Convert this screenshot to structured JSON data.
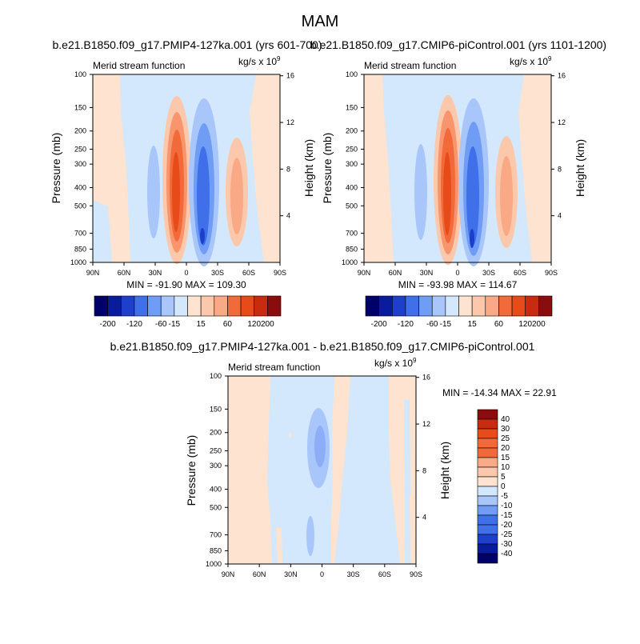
{
  "title": "MAM",
  "chart_data": [
    {
      "type": "heatmap",
      "subtitle": "b.e21.B1850.f09_g17.PMIP4-127ka.001 (yrs 601-700)",
      "left_label": "Merid stream function",
      "units_base": "kg/s x 10",
      "units_exp": "9",
      "ylabel": "Pressure (mb)",
      "ylabel_right": "Height (km)",
      "xticks": [
        "90N",
        "60N",
        "30N",
        "0",
        "30S",
        "60S",
        "90S"
      ],
      "pressure_ticks": [
        "100",
        "150",
        "200",
        "250",
        "300",
        "400",
        "500",
        "700",
        "850",
        "1000"
      ],
      "height_ticks": [
        "16",
        "12",
        "8",
        "4"
      ],
      "stats": "MIN = -91.90  MAX = 109.30",
      "levels": [
        -200,
        -160,
        -120,
        -80,
        -60,
        -40,
        -15,
        0,
        15,
        40,
        60,
        80,
        120,
        160,
        200
      ],
      "colorbar_labels": [
        "-200",
        "-120",
        "-60",
        "-15",
        "15",
        "60",
        "120",
        "200"
      ],
      "cells": [
        {
          "lat": -10,
          "p": 400,
          "value": 109.3
        },
        {
          "lat": 17,
          "p": 700,
          "value": -91.9
        },
        {
          "lat": 47,
          "p": 450,
          "value": 35
        },
        {
          "lat": -52,
          "p": 420,
          "value": -20
        }
      ]
    },
    {
      "type": "heatmap",
      "subtitle": "b.e21.B1850.f09_g17.CMIP6-piControl.001 (yrs 1101-1200)",
      "left_label": "Merid stream function",
      "units_base": "kg/s x 10",
      "units_exp": "9",
      "ylabel": "Pressure (mb)",
      "ylabel_right": "Height (km)",
      "xticks": [
        "90N",
        "60N",
        "30N",
        "0",
        "30S",
        "60S",
        "90S"
      ],
      "pressure_ticks": [
        "100",
        "150",
        "200",
        "250",
        "300",
        "400",
        "500",
        "700",
        "850",
        "1000"
      ],
      "height_ticks": [
        "16",
        "12",
        "8",
        "4"
      ],
      "stats": "MIN = -93.98  MAX = 114.67",
      "levels": [
        -200,
        -160,
        -120,
        -80,
        -60,
        -40,
        -15,
        0,
        15,
        40,
        60,
        80,
        120,
        160,
        200
      ],
      "colorbar_labels": [
        "-200",
        "-120",
        "-60",
        "-15",
        "15",
        "60",
        "120",
        "200"
      ],
      "cells": [
        {
          "lat": -12,
          "p": 400,
          "value": 114.67
        },
        {
          "lat": 15,
          "p": 700,
          "value": -93.98
        },
        {
          "lat": 45,
          "p": 450,
          "value": 38
        },
        {
          "lat": -50,
          "p": 420,
          "value": -22
        }
      ]
    },
    {
      "type": "heatmap",
      "subtitle": "b.e21.B1850.f09_g17.PMIP4-127ka.001 - b.e21.B1850.f09_g17.CMIP6-piControl.001",
      "left_label": "Merid stream function",
      "units_base": "kg/s x 10",
      "units_exp": "9",
      "ylabel": "Pressure (mb)",
      "ylabel_right": "Height (km)",
      "xticks": [
        "90N",
        "60N",
        "30N",
        "0",
        "30S",
        "60S",
        "90S"
      ],
      "pressure_ticks": [
        "100",
        "150",
        "200",
        "250",
        "300",
        "400",
        "500",
        "700",
        "850",
        "1000"
      ],
      "height_ticks": [
        "16",
        "12",
        "8",
        "4"
      ],
      "stats": "MIN = -14.34  MAX =  22.91",
      "levels": [
        -40,
        -30,
        -25,
        -20,
        -15,
        -10,
        -5,
        0,
        5,
        10,
        15,
        20,
        25,
        30,
        40
      ],
      "colorbar_labels": [
        "40",
        "30",
        "25",
        "20",
        "15",
        "10",
        "5",
        "0",
        "-5",
        "-10",
        "-15",
        "-20",
        "-25",
        "-30",
        "-40"
      ],
      "cells": [
        {
          "lat": -2,
          "p": 230,
          "value": -14.34
        },
        {
          "lat": 10,
          "p": 760,
          "value": -6
        },
        {
          "lat": 50,
          "p": 300,
          "value": 3
        }
      ]
    }
  ]
}
